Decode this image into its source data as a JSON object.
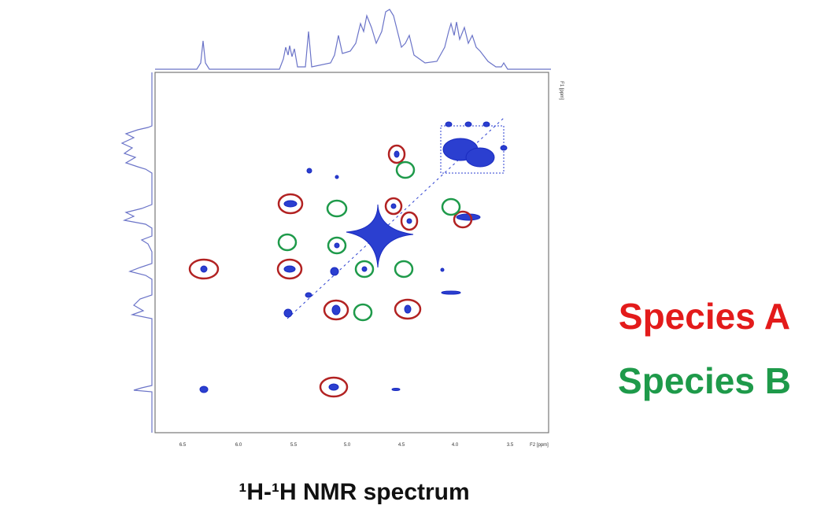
{
  "spectrum": {
    "x_labels": [
      "6.5",
      "6.0",
      "5.5",
      "5.0",
      "4.5",
      "4.0",
      "3.5"
    ],
    "x_unit": "F2 [ppm]",
    "y_unit": "F1 [ppm]"
  },
  "legend": {
    "species_a": "Species A",
    "species_b": "Species B"
  },
  "caption": "¹H-¹H NMR spectrum"
}
